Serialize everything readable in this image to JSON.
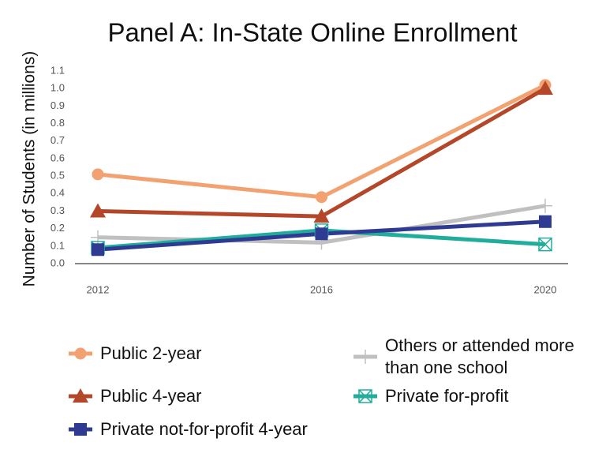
{
  "chart_data": {
    "type": "line",
    "title": "Panel A: In-State Online Enrollment",
    "y_label": "Number of Students (in millions)",
    "categories": [
      "2012",
      "2016",
      "2020"
    ],
    "ylim": [
      0,
      1.1
    ],
    "yticks": [
      {
        "value": 0,
        "label": "0.0"
      },
      0.1,
      0.2,
      0.3,
      0.4,
      0.5,
      0.6,
      0.7,
      0.8,
      0.9,
      {
        "value": 1,
        "label": "1.0"
      },
      1.1
    ],
    "grid": false,
    "legend": "bottom",
    "series": [
      {
        "name": "Public 2-year",
        "color": "#f2a271",
        "marker": "circle",
        "values": [
          0.51,
          0.38,
          1.02
        ]
      },
      {
        "name": "Others or attended more than one school",
        "color": "#c0c0c0",
        "marker": "plus",
        "values": [
          0.15,
          0.12,
          0.33
        ]
      },
      {
        "name": "Public 4-year",
        "color": "#b4472a",
        "marker": "triangle",
        "values": [
          0.3,
          0.27,
          1.0
        ]
      },
      {
        "name": "Private for-profit",
        "color": "#20ad9b",
        "marker": "square-x",
        "values": [
          0.09,
          0.19,
          0.11
        ]
      },
      {
        "name": "Private not-for-profit 4-year",
        "color": "#2f3a92",
        "marker": "square",
        "values": [
          0.08,
          0.17,
          0.24
        ]
      }
    ]
  }
}
